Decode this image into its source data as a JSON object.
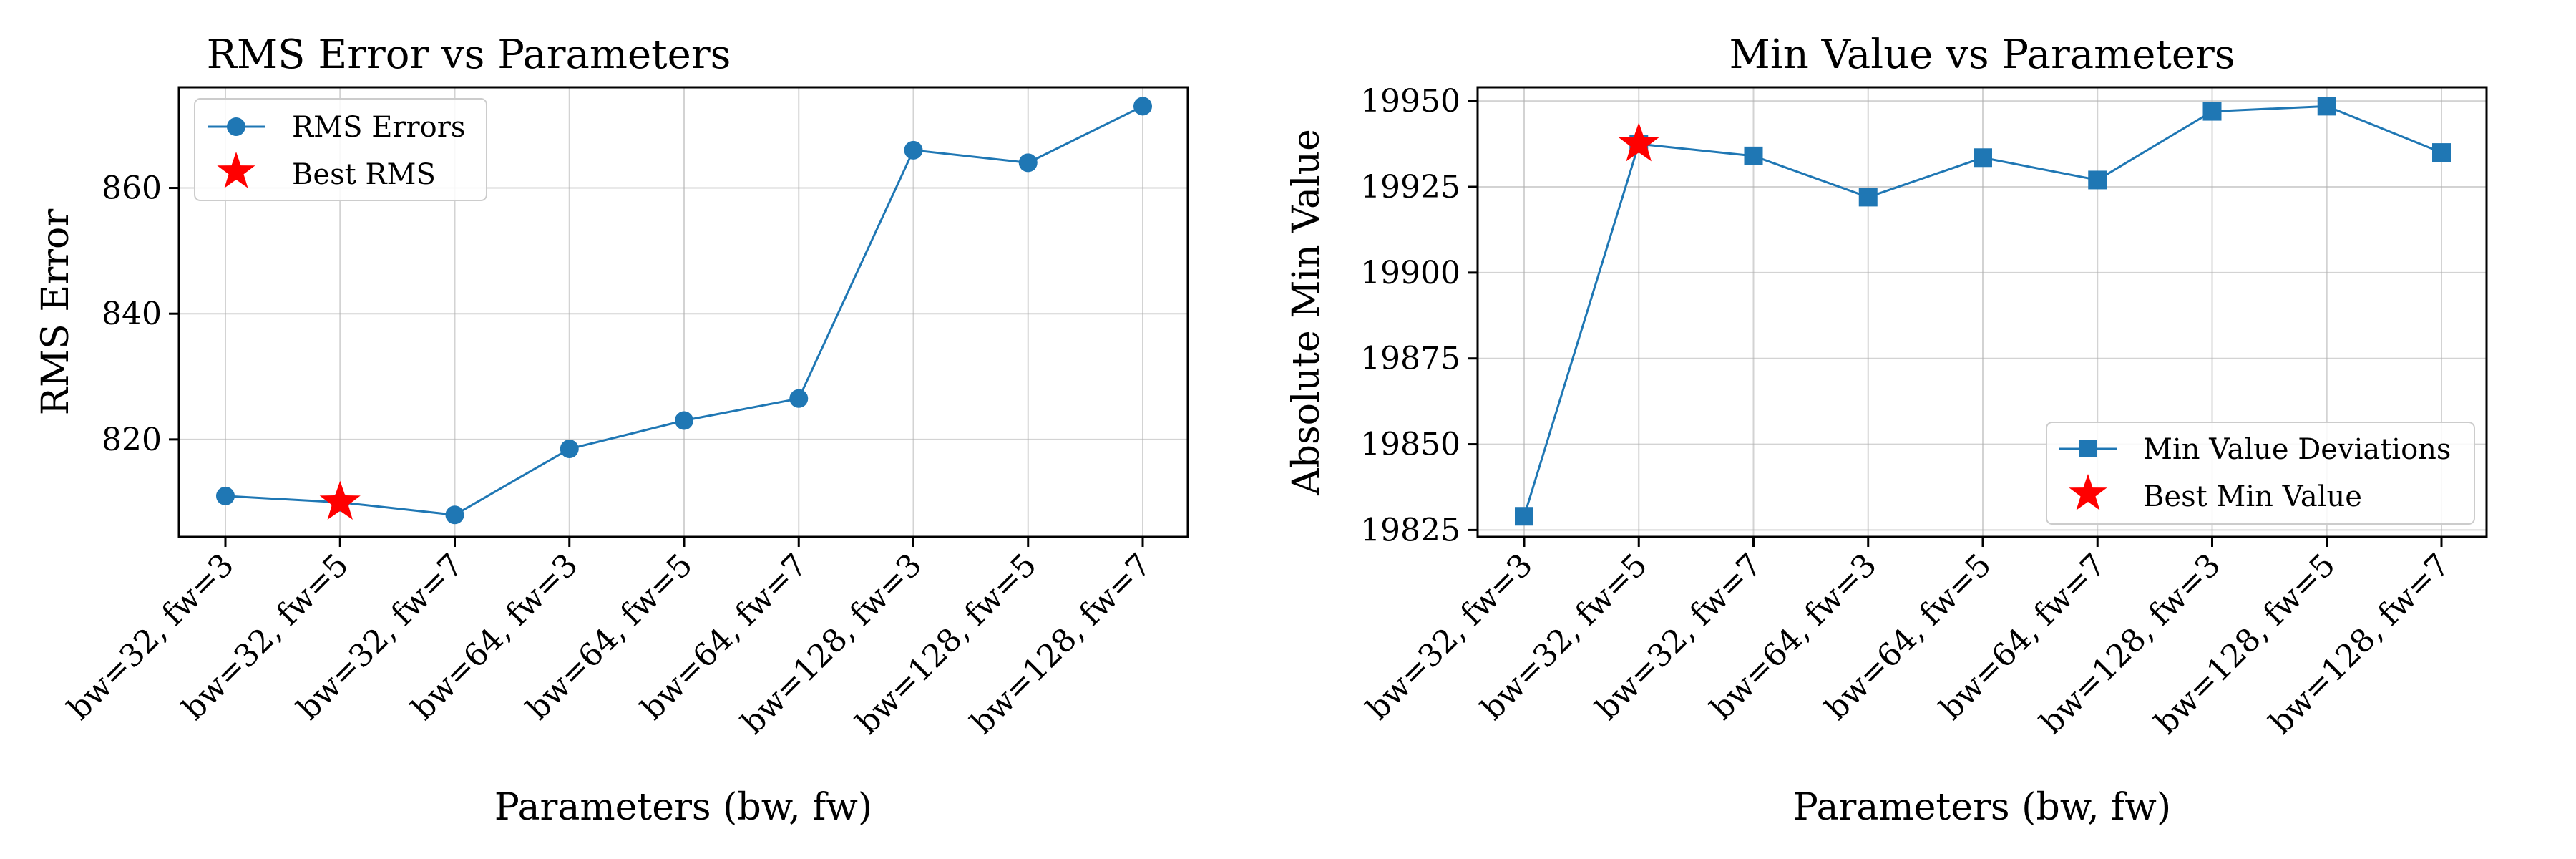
{
  "chart_data": [
    {
      "type": "line",
      "title": "RMS Error vs Parameters",
      "xlabel": "Parameters (bw, fw)",
      "ylabel": "RMS Error",
      "categories": [
        "bw=32, fw=3",
        "bw=32, fw=5",
        "bw=32, fw=7",
        "bw=64, fw=3",
        "bw=64, fw=5",
        "bw=64, fw=7",
        "bw=128, fw=3",
        "bw=128, fw=5",
        "bw=128, fw=7"
      ],
      "series": [
        {
          "name": "RMS Errors",
          "values": [
            811,
            810,
            808,
            818.5,
            823,
            826.5,
            866,
            864,
            873
          ],
          "color": "#1f77b4",
          "marker": "circle"
        }
      ],
      "highlight": {
        "name": "Best RMS",
        "category_index": 1,
        "value": 810,
        "color": "#ff0000",
        "marker": "star"
      },
      "ylim": [
        804.5,
        876
      ],
      "yticks": [
        820,
        840,
        860
      ],
      "grid": true,
      "legend_position": "upper left"
    },
    {
      "type": "line",
      "title": "Min Value vs Parameters",
      "xlabel": "Parameters (bw, fw)",
      "ylabel": "Absolute Min Value",
      "categories": [
        "bw=32, fw=3",
        "bw=32, fw=5",
        "bw=32, fw=7",
        "bw=64, fw=3",
        "bw=64, fw=5",
        "bw=64, fw=7",
        "bw=128, fw=3",
        "bw=128, fw=5",
        "bw=128, fw=7"
      ],
      "series": [
        {
          "name": "Min Value Deviations",
          "values": [
            19829,
            19937.5,
            19934,
            19922,
            19933.5,
            19927,
            19947,
            19948.5,
            19935
          ],
          "color": "#1f77b4",
          "marker": "square"
        }
      ],
      "highlight": {
        "name": "Best Min Value",
        "category_index": 1,
        "value": 19937.5,
        "color": "#ff0000",
        "marker": "star"
      },
      "ylim": [
        19823,
        19954
      ],
      "yticks": [
        19825,
        19850,
        19875,
        19900,
        19925,
        19950
      ],
      "grid": true,
      "legend_position": "lower right"
    }
  ]
}
